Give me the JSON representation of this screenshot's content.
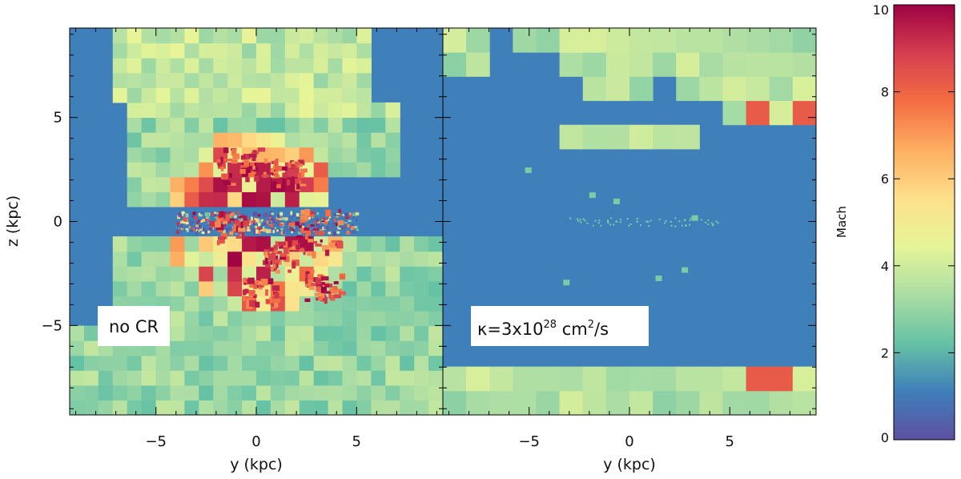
{
  "chart_data": [
    {
      "type": "heatmap",
      "xlabel": "y (kpc)",
      "ylabel": "z (kpc)",
      "xlim": [
        -9.3,
        9.3
      ],
      "ylim": [
        -9.3,
        9.3
      ],
      "x_ticks": [
        -5,
        0,
        5
      ],
      "y_ticks": [
        -5,
        0,
        5
      ],
      "x_tick_labels": [
        "−5",
        "0",
        "5"
      ],
      "y_tick_labels": [
        "−5",
        "0",
        "5"
      ],
      "annotation": "no CR",
      "colorscale": "Spectral (reversed)",
      "description_values": "Mach number map; cold disk (~0) near z=0 surrounded by warm outflow (~2-4) with shock regions (>8) near center"
    },
    {
      "type": "heatmap",
      "xlabel": "y (kpc)",
      "ylabel": "",
      "xlim": [
        -9.3,
        9.3
      ],
      "ylim": [
        -9.3,
        9.3
      ],
      "x_ticks": [
        -5,
        0,
        5
      ],
      "x_tick_labels": [
        "−5",
        "0",
        "5"
      ],
      "annotation_prefix": "κ=3x10",
      "annotation_sup": "28",
      "annotation_mid": " cm",
      "annotation_sup2": "2",
      "annotation_suffix": "/s",
      "colorscale": "Spectral (reversed)"
    }
  ],
  "colorbar": {
    "label": "Mach",
    "range": [
      0,
      10
    ],
    "ticks": [
      0,
      2,
      4,
      6,
      8,
      10
    ],
    "tick_labels": [
      "0",
      "2",
      "4",
      "6",
      "8",
      "10"
    ],
    "colors": [
      "#5e4fa2",
      "#3f7fba",
      "#66c2a5",
      "#abdda4",
      "#e6f598",
      "#fee08b",
      "#fdae61",
      "#f46d43",
      "#d53e4f",
      "#9e0142"
    ]
  },
  "colors": {
    "background_cold": "#3f7fba"
  }
}
